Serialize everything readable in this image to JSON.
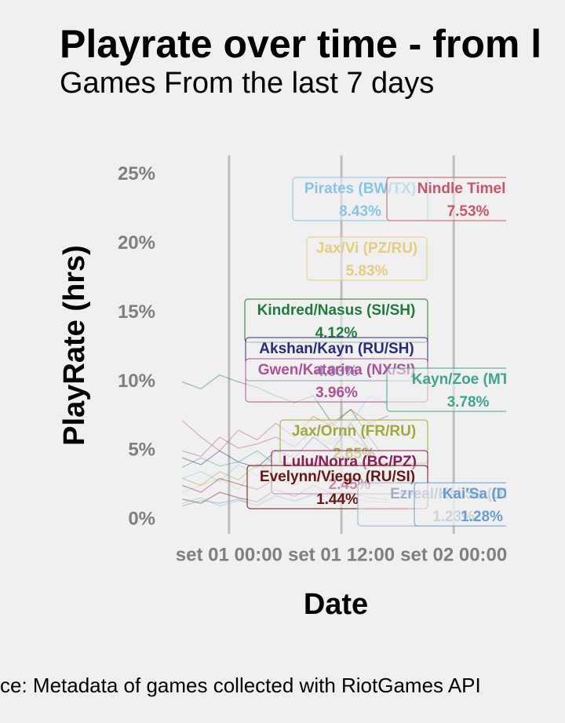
{
  "chart_data": {
    "type": "line",
    "title": "Playrate over time - from l",
    "subtitle": "Games From the last 7 days",
    "x_label": "Date",
    "y_label": "PlayRate (hrs)",
    "caption": "ce: Metadata of games collected with RiotGames API",
    "x": [
      -5,
      -3,
      -1,
      1,
      3,
      5,
      7,
      9,
      11,
      13,
      15,
      17
    ],
    "xlim": [
      -7.7,
      29.6
    ],
    "xticks": [
      {
        "value": 0,
        "label": "set 01 00:00"
      },
      {
        "value": 12,
        "label": "set 01 12:00"
      },
      {
        "value": 24,
        "label": "set 02 00:00"
      }
    ],
    "ylim": [
      -0.5,
      25.5
    ],
    "yticks": [
      {
        "value": 0,
        "label": "0%"
      },
      {
        "value": 5,
        "label": "5%"
      },
      {
        "value": 10,
        "label": "10%"
      },
      {
        "value": 15,
        "label": "15%"
      },
      {
        "value": 20,
        "label": "20%"
      },
      {
        "value": 25,
        "label": "25%"
      }
    ],
    "grid": "x",
    "series": [
      {
        "name": "Pirates (BW/TX)",
        "color": "#87c5e8",
        "end_label": "8.43%",
        "values": [
          3,
          3.5,
          2.8,
          4,
          3.2,
          5,
          4.5,
          6,
          5.5,
          7,
          9,
          8.43
        ]
      },
      {
        "name": "Nindle Timelin",
        "color": "#c8566a",
        "end_label": "7.53%",
        "values": [
          7.2,
          6,
          5,
          6.5,
          5.8,
          7,
          6,
          7.5,
          6.8,
          8,
          7,
          7.53
        ]
      },
      {
        "name": "Jax/Vi (PZ/RU)",
        "color": "#e3cd7e",
        "end_label": "5.83%",
        "values": [
          2,
          2.5,
          3,
          2.2,
          4,
          3.5,
          5,
          4.2,
          6,
          5,
          7,
          5.83
        ]
      },
      {
        "name": "Kindred/Nasus (SI/SH)",
        "color": "#1e7b3a",
        "end_label": "4.12%",
        "values": [
          10,
          9.5,
          10.5,
          10,
          9.6,
          9,
          8.5,
          9,
          7,
          8,
          6,
          4.12
        ]
      },
      {
        "name": "Akshan/Kayn (RU/SH)",
        "color": "#2b2a7f",
        "end_label": "4.03%",
        "values": [
          4.5,
          4,
          5,
          4.2,
          3.8,
          5,
          4.5,
          6,
          5,
          7,
          5,
          4.03
        ]
      },
      {
        "name": "Gwen/Katarina (NX/SI)",
        "color": "#b0509a",
        "end_label": "3.96%",
        "values": [
          5,
          4.6,
          6,
          5.2,
          5.5,
          6,
          5.3,
          6.5,
          7,
          6,
          5,
          3.96
        ]
      },
      {
        "name": "Kayn/Zoe (MT/H",
        "color": "#3fa58f",
        "end_label": "3.78%",
        "values": [
          3.8,
          4.5,
          3.9,
          4.2,
          5,
          4,
          4.8,
          3.9,
          5,
          4.4,
          4,
          3.78
        ]
      },
      {
        "name": "Jax/Ornn (FR/RU)",
        "color": "#a3a83a",
        "end_label": "2.65%",
        "values": [
          3,
          2.5,
          3.5,
          2.9,
          4,
          3.2,
          3.8,
          4.5,
          3.5,
          4,
          3,
          2.65
        ]
      },
      {
        "name": "Lulu/Norra (BC/PZ)",
        "color": "#8b1a5c",
        "end_label": "2.45%",
        "values": [
          2.5,
          2,
          3,
          2.6,
          2.2,
          3,
          2.5,
          3.4,
          2.8,
          3,
          2.6,
          2.45
        ]
      },
      {
        "name": "Evelynn/Viego (RU/SI)",
        "color": "#6b1414",
        "end_label": "1.44%",
        "values": [
          1.5,
          1.2,
          2,
          1.6,
          1.3,
          2.2,
          1.7,
          2.5,
          1.9,
          2,
          1.6,
          1.44
        ]
      },
      {
        "name": "Ezreal/Kai'Sa (DE/",
        "color": "#9ab0c8",
        "end_label": "1.23%",
        "values": [
          1.2,
          1.6,
          1,
          1.4,
          1.1,
          1.8,
          1.3,
          1.9,
          1.5,
          1.6,
          1.4,
          1.23
        ]
      },
      {
        "name": "Kai'Sa (DE/",
        "color": "#6a9ccf",
        "end_label": "1.28%",
        "values": [
          1,
          1.4,
          1.2,
          1.5,
          1,
          1.7,
          1.4,
          1.8,
          1.2,
          1.5,
          1.3,
          1.28
        ]
      }
    ]
  }
}
